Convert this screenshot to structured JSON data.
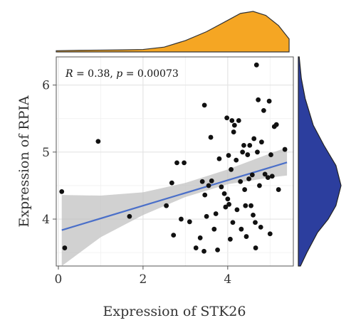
{
  "chart_data": {
    "type": "scatter",
    "xlabel": "Expression of STK26",
    "ylabel": "Expression of RPIA",
    "xlim": [
      -0.05,
      5.55
    ],
    "ylim": [
      3.3,
      6.42
    ],
    "xticks": [
      0,
      2,
      4
    ],
    "yticks": [
      4,
      5,
      6
    ],
    "grid": true,
    "annotation": {
      "r_label": "R",
      "r_value": "= 0.38,",
      "p_label": "p",
      "p_value": "= 0.00073"
    },
    "regression": {
      "intercept": 3.82,
      "slope": 0.19,
      "band": [
        {
          "x": 0.08,
          "lower": 3.3,
          "upper": 4.36
        },
        {
          "x": 1.0,
          "lower": 3.73,
          "upper": 4.35
        },
        {
          "x": 2.0,
          "lower": 4.06,
          "upper": 4.4
        },
        {
          "x": 3.0,
          "lower": 4.33,
          "upper": 4.54
        },
        {
          "x": 4.0,
          "lower": 4.52,
          "upper": 4.74
        },
        {
          "x": 5.0,
          "lower": 4.62,
          "upper": 4.98
        },
        {
          "x": 5.4,
          "lower": 4.65,
          "upper": 5.07
        }
      ],
      "color": "#4a6fc9"
    },
    "points": [
      {
        "x": 0.08,
        "y": 4.41
      },
      {
        "x": 0.15,
        "y": 3.57
      },
      {
        "x": 0.94,
        "y": 5.16
      },
      {
        "x": 1.68,
        "y": 4.04
      },
      {
        "x": 2.55,
        "y": 4.2
      },
      {
        "x": 2.68,
        "y": 4.54
      },
      {
        "x": 2.72,
        "y": 3.76
      },
      {
        "x": 2.8,
        "y": 4.84
      },
      {
        "x": 2.9,
        "y": 4.0
      },
      {
        "x": 2.97,
        "y": 4.84
      },
      {
        "x": 3.1,
        "y": 3.96
      },
      {
        "x": 3.25,
        "y": 3.57
      },
      {
        "x": 3.35,
        "y": 3.72
      },
      {
        "x": 3.4,
        "y": 4.56
      },
      {
        "x": 3.44,
        "y": 3.52
      },
      {
        "x": 3.45,
        "y": 5.7
      },
      {
        "x": 3.46,
        "y": 4.36
      },
      {
        "x": 3.5,
        "y": 4.04
      },
      {
        "x": 3.55,
        "y": 4.5
      },
      {
        "x": 3.6,
        "y": 5.22
      },
      {
        "x": 3.62,
        "y": 4.57
      },
      {
        "x": 3.68,
        "y": 3.85
      },
      {
        "x": 3.72,
        "y": 4.08
      },
      {
        "x": 3.76,
        "y": 3.54
      },
      {
        "x": 3.8,
        "y": 4.9
      },
      {
        "x": 3.85,
        "y": 4.48
      },
      {
        "x": 3.92,
        "y": 4.38
      },
      {
        "x": 3.95,
        "y": 4.18
      },
      {
        "x": 3.98,
        "y": 5.51
      },
      {
        "x": 4.0,
        "y": 4.3
      },
      {
        "x": 4.02,
        "y": 4.95
      },
      {
        "x": 4.03,
        "y": 4.22
      },
      {
        "x": 4.06,
        "y": 3.7
      },
      {
        "x": 4.08,
        "y": 4.74
      },
      {
        "x": 4.1,
        "y": 5.47
      },
      {
        "x": 4.12,
        "y": 3.95
      },
      {
        "x": 4.14,
        "y": 5.3
      },
      {
        "x": 4.16,
        "y": 5.4
      },
      {
        "x": 4.2,
        "y": 4.88
      },
      {
        "x": 4.22,
        "y": 4.14
      },
      {
        "x": 4.26,
        "y": 5.47
      },
      {
        "x": 4.3,
        "y": 4.56
      },
      {
        "x": 4.32,
        "y": 3.85
      },
      {
        "x": 4.35,
        "y": 5.0
      },
      {
        "x": 4.38,
        "y": 5.1
      },
      {
        "x": 4.4,
        "y": 4.44
      },
      {
        "x": 4.42,
        "y": 4.2
      },
      {
        "x": 4.44,
        "y": 3.74
      },
      {
        "x": 4.47,
        "y": 4.96
      },
      {
        "x": 4.5,
        "y": 4.6
      },
      {
        "x": 4.52,
        "y": 5.1
      },
      {
        "x": 4.55,
        "y": 4.2
      },
      {
        "x": 4.58,
        "y": 4.66
      },
      {
        "x": 4.6,
        "y": 4.06
      },
      {
        "x": 4.62,
        "y": 5.2
      },
      {
        "x": 4.65,
        "y": 3.95
      },
      {
        "x": 4.66,
        "y": 3.57
      },
      {
        "x": 4.68,
        "y": 6.3
      },
      {
        "x": 4.7,
        "y": 5.0
      },
      {
        "x": 4.72,
        "y": 5.78
      },
      {
        "x": 4.75,
        "y": 4.5
      },
      {
        "x": 4.78,
        "y": 3.88
      },
      {
        "x": 4.8,
        "y": 5.15
      },
      {
        "x": 4.85,
        "y": 5.62
      },
      {
        "x": 4.88,
        "y": 4.67
      },
      {
        "x": 4.95,
        "y": 4.62
      },
      {
        "x": 4.98,
        "y": 5.76
      },
      {
        "x": 5.0,
        "y": 3.78
      },
      {
        "x": 5.02,
        "y": 4.96
      },
      {
        "x": 5.05,
        "y": 4.64
      },
      {
        "x": 5.1,
        "y": 5.38
      },
      {
        "x": 5.15,
        "y": 5.41
      },
      {
        "x": 5.2,
        "y": 4.44
      },
      {
        "x": 5.35,
        "y": 5.04
      }
    ],
    "point_color": "#111111",
    "marginal_x": {
      "color": "#f5a623",
      "density": [
        [
          -0.05,
          0.03
        ],
        [
          0.5,
          0.04
        ],
        [
          1.0,
          0.045
        ],
        [
          1.5,
          0.05
        ],
        [
          2.0,
          0.06
        ],
        [
          2.5,
          0.12
        ],
        [
          3.0,
          0.28
        ],
        [
          3.5,
          0.5
        ],
        [
          4.0,
          0.78
        ],
        [
          4.3,
          0.95
        ],
        [
          4.6,
          1.0
        ],
        [
          4.9,
          0.9
        ],
        [
          5.2,
          0.65
        ],
        [
          5.45,
          0.32
        ]
      ]
    },
    "marginal_y": {
      "color": "#2c3e9e",
      "density": [
        [
          3.3,
          0.05
        ],
        [
          3.5,
          0.2
        ],
        [
          3.8,
          0.45
        ],
        [
          4.0,
          0.7
        ],
        [
          4.2,
          0.88
        ],
        [
          4.5,
          1.0
        ],
        [
          4.8,
          0.88
        ],
        [
          5.1,
          0.6
        ],
        [
          5.4,
          0.35
        ],
        [
          5.8,
          0.16
        ],
        [
          6.1,
          0.07
        ],
        [
          6.42,
          0.02
        ]
      ]
    }
  }
}
